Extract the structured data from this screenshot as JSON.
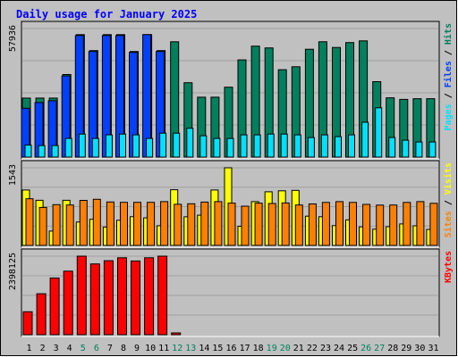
{
  "title": "Daily usage for January 2025",
  "colors": {
    "background": "#c0c0c0",
    "title": "#0000ff",
    "hits": "#00805c",
    "files": "#0040ff",
    "pages": "#00e0ff",
    "visits": "#ffff00",
    "sites": "#ff8000",
    "kbytes": "#ff0000",
    "weekday_label": "#000000",
    "weekend_label": "#00805c"
  },
  "chart_data": [
    {
      "type": "bar",
      "title": "Daily usage for January 2025",
      "panel": "hits-files-pages",
      "ymax_label": "57936",
      "ymax": 57936,
      "right_labels": [
        {
          "text": "Pages",
          "color": "#00e0ff"
        },
        {
          "text": " / ",
          "color": "#000000"
        },
        {
          "text": "Files",
          "color": "#0040ff"
        },
        {
          "text": " / ",
          "color": "#000000"
        },
        {
          "text": "Hits",
          "color": "#00805c"
        }
      ],
      "categories": [
        "1",
        "2",
        "3",
        "4",
        "5",
        "6",
        "7",
        "8",
        "9",
        "10",
        "11",
        "12",
        "13",
        "14",
        "15",
        "16",
        "17",
        "18",
        "19",
        "20",
        "21",
        "22",
        "23",
        "24",
        "25",
        "26",
        "27",
        "28",
        "29",
        "30",
        "31"
      ],
      "series": [
        {
          "name": "Hits",
          "color": "#00805c",
          "values": [
            26600,
            26600,
            26600,
            37200,
            55200,
            48000,
            55200,
            55200,
            47600,
            55200,
            48000,
            52000,
            33500,
            27000,
            27000,
            31500,
            43800,
            50000,
            49200,
            39400,
            40700,
            48600,
            52000,
            49400,
            51600,
            52400,
            34000,
            26700,
            26000,
            26300,
            26300
          ]
        },
        {
          "name": "Files",
          "color": "#0040ff",
          "values": [
            22000,
            24600,
            25400,
            36600,
            54800,
            47600,
            54800,
            54800,
            47200,
            55200,
            47600,
            0,
            0,
            0,
            0,
            0,
            0,
            0,
            0,
            0,
            0,
            0,
            0,
            0,
            0,
            0,
            0,
            0,
            0,
            0,
            0
          ]
        },
        {
          "name": "Pages",
          "color": "#00e0ff",
          "values": [
            5400,
            5200,
            5200,
            8400,
            10400,
            8400,
            10000,
            10400,
            10000,
            8400,
            10800,
            10800,
            13000,
            9600,
            8400,
            8400,
            10000,
            10000,
            10400,
            10400,
            10000,
            8800,
            10000,
            9200,
            10000,
            15700,
            22200,
            8800,
            7600,
            6800,
            6800
          ]
        }
      ]
    },
    {
      "type": "bar",
      "panel": "visits-sites",
      "ymax_label": "1543",
      "ymax": 1543,
      "right_labels": [
        {
          "text": "Sites",
          "color": "#ff8000"
        },
        {
          "text": " / ",
          "color": "#000000"
        },
        {
          "text": "Visits",
          "color": "#ffff00"
        }
      ],
      "categories": [
        "1",
        "2",
        "3",
        "4",
        "5",
        "6",
        "7",
        "8",
        "9",
        "10",
        "11",
        "12",
        "13",
        "14",
        "15",
        "16",
        "17",
        "18",
        "19",
        "20",
        "21",
        "22",
        "23",
        "24",
        "25",
        "26",
        "27",
        "28",
        "29",
        "30",
        "31"
      ],
      "series": [
        {
          "name": "Visits",
          "color": "#ffff00",
          "values": [
            1102,
            898,
            285,
            897,
            464,
            520,
            366,
            501,
            571,
            548,
            392,
            1107,
            570,
            602,
            1102,
            1543,
            382,
            871,
            1066,
            1085,
            1095,
            581,
            571,
            393,
            508,
            369,
            322,
            373,
            428,
            390,
            318
          ]
        },
        {
          "name": "Sites",
          "color": "#ff8000",
          "values": [
            928,
            755,
            811,
            803,
            895,
            917,
            863,
            856,
            856,
            856,
            871,
            817,
            828,
            862,
            871,
            841,
            781,
            841,
            833,
            844,
            803,
            824,
            855,
            871,
            855,
            815,
            801,
            804,
            855,
            871,
            838
          ]
        }
      ]
    },
    {
      "type": "bar",
      "panel": "kbytes",
      "ymax_label": "2398125",
      "ymax": 2398125,
      "right_labels": [
        {
          "text": "KBytes",
          "color": "#ff0000"
        }
      ],
      "categories": [
        "1",
        "2",
        "3",
        "4",
        "5",
        "6",
        "7",
        "8",
        "9",
        "10",
        "11",
        "12",
        "13",
        "14",
        "15",
        "16",
        "17",
        "18",
        "19",
        "20",
        "21",
        "22",
        "23",
        "24",
        "25",
        "26",
        "27",
        "28",
        "29",
        "30",
        "31"
      ],
      "series": [
        {
          "name": "KBytes",
          "color": "#ff0000",
          "values": [
            700000,
            1250000,
            1730000,
            1940000,
            2398125,
            2160000,
            2260000,
            2350000,
            2250000,
            2350000,
            2398125,
            30000,
            0,
            0,
            0,
            0,
            0,
            0,
            0,
            0,
            0,
            0,
            0,
            0,
            0,
            0,
            0,
            0,
            0,
            0,
            0
          ]
        }
      ]
    }
  ],
  "x_labels": [
    "1",
    "2",
    "3",
    "4",
    "5",
    "6",
    "7",
    "8",
    "9",
    "10",
    "11",
    "12",
    "13",
    "14",
    "15",
    "16",
    "17",
    "18",
    "19",
    "20",
    "21",
    "22",
    "23",
    "24",
    "25",
    "26",
    "27",
    "28",
    "29",
    "30",
    "31"
  ],
  "weekend_days": [
    4,
    5,
    11,
    12,
    18,
    19,
    25,
    26
  ]
}
